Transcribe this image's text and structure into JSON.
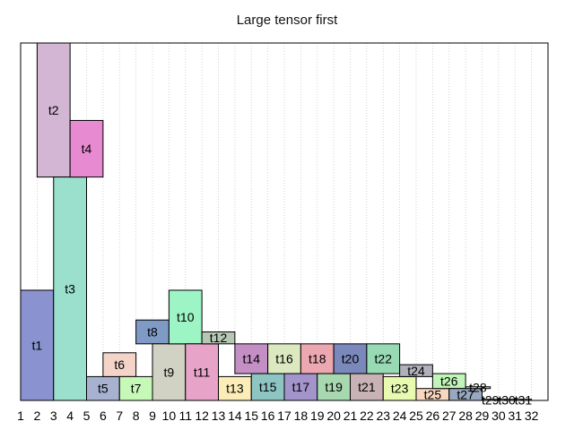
{
  "chart_data": {
    "type": "bar",
    "title": "Large tensor first",
    "xlabel": "",
    "ylabel": "",
    "grid": "vertical dotted",
    "xlim": [
      1,
      33
    ],
    "ylim": [
      0,
      120
    ],
    "x_ticks": [
      "1",
      "2",
      "3",
      "4",
      "5",
      "6",
      "7",
      "8",
      "9",
      "10",
      "11",
      "12",
      "13",
      "14",
      "15",
      "16",
      "17",
      "18",
      "19",
      "20",
      "21",
      "22",
      "23",
      "24",
      "25",
      "26",
      "27",
      "28",
      "29",
      "30",
      "31",
      "32"
    ],
    "blocks": [
      {
        "label": "t1",
        "x0": 1,
        "x1": 3,
        "y0": 0,
        "y1": 37,
        "color": "#8a93cf"
      },
      {
        "label": "t2",
        "x0": 2,
        "x1": 4,
        "y0": 75,
        "y1": 120,
        "color": "#d3b6d3"
      },
      {
        "label": "t3",
        "x0": 3,
        "x1": 5,
        "y0": 0,
        "y1": 75,
        "color": "#9be0cc"
      },
      {
        "label": "t4",
        "x0": 4,
        "x1": 6,
        "y0": 75,
        "y1": 94,
        "color": "#e88ad2"
      },
      {
        "label": "t5",
        "x0": 5,
        "x1": 7,
        "y0": 0,
        "y1": 8,
        "color": "#a6b2d0"
      },
      {
        "label": "t6",
        "x0": 6,
        "x1": 8,
        "y0": 8,
        "y1": 16,
        "color": "#f4d4c8"
      },
      {
        "label": "t7",
        "x0": 7,
        "x1": 9,
        "y0": 0,
        "y1": 8,
        "color": "#c6f8b8"
      },
      {
        "label": "t8",
        "x0": 8,
        "x1": 10,
        "y0": 19,
        "y1": 27,
        "color": "#7f9ac4"
      },
      {
        "label": "t9",
        "x0": 9,
        "x1": 11,
        "y0": 0,
        "y1": 19,
        "color": "#d2d2c4"
      },
      {
        "label": "t10",
        "x0": 10,
        "x1": 12,
        "y0": 19,
        "y1": 37,
        "color": "#9df4c4"
      },
      {
        "label": "t11",
        "x0": 11,
        "x1": 13,
        "y0": 0,
        "y1": 19,
        "color": "#e7a4c8"
      },
      {
        "label": "t12",
        "x0": 12,
        "x1": 14,
        "y0": 19,
        "y1": 23,
        "color": "#b6c8b4"
      },
      {
        "label": "t13",
        "x0": 13,
        "x1": 15,
        "y0": 0,
        "y1": 8,
        "color": "#fcecb8"
      },
      {
        "label": "t14",
        "x0": 14,
        "x1": 16,
        "y0": 9,
        "y1": 19,
        "color": "#c38fc4"
      },
      {
        "label": "t15",
        "x0": 15,
        "x1": 17,
        "y0": 0,
        "y1": 9,
        "color": "#8ec4c2"
      },
      {
        "label": "t16",
        "x0": 16,
        "x1": 18,
        "y0": 9,
        "y1": 19,
        "color": "#dce8c0"
      },
      {
        "label": "t17",
        "x0": 17,
        "x1": 19,
        "y0": 0,
        "y1": 9,
        "color": "#a494cc"
      },
      {
        "label": "t18",
        "x0": 18,
        "x1": 20,
        "y0": 9,
        "y1": 19,
        "color": "#eca8b0"
      },
      {
        "label": "t19",
        "x0": 19,
        "x1": 21,
        "y0": 0,
        "y1": 9,
        "color": "#a8d8b0"
      },
      {
        "label": "t20",
        "x0": 20,
        "x1": 22,
        "y0": 9,
        "y1": 19,
        "color": "#7b88bc"
      },
      {
        "label": "t21",
        "x0": 21,
        "x1": 23,
        "y0": 0,
        "y1": 9,
        "color": "#c8b2b6"
      },
      {
        "label": "t22",
        "x0": 22,
        "x1": 24,
        "y0": 9,
        "y1": 19,
        "color": "#98dab4"
      },
      {
        "label": "t23",
        "x0": 23,
        "x1": 25,
        "y0": 0,
        "y1": 8,
        "color": "#e8fab0"
      },
      {
        "label": "t24",
        "x0": 24,
        "x1": 26,
        "y0": 8,
        "y1": 12,
        "color": "#b0b0bc"
      },
      {
        "label": "t25",
        "x0": 25,
        "x1": 27,
        "y0": 0,
        "y1": 4,
        "color": "#f8d8c0"
      },
      {
        "label": "t26",
        "x0": 26,
        "x1": 28,
        "y0": 4,
        "y1": 9,
        "color": "#c0f4b8"
      },
      {
        "label": "t27",
        "x0": 27,
        "x1": 29,
        "y0": 0,
        "y1": 4,
        "color": "#98a8c0"
      },
      {
        "label": "t28",
        "x0": 28,
        "x1": 29.5,
        "y0": 4,
        "y1": 4.6,
        "color": "#d0d0c8"
      },
      {
        "label": "t29",
        "x0": 29,
        "x1": 30,
        "y0": 0,
        "y1": 0.4,
        "color": "#bbbbbb"
      },
      {
        "label": "t30",
        "x0": 30,
        "x1": 31,
        "y0": 0,
        "y1": 0.4,
        "color": "#bbbbbb"
      },
      {
        "label": "t31",
        "x0": 31,
        "x1": 32,
        "y0": 0,
        "y1": 0.4,
        "color": "#bbbbbb"
      }
    ]
  }
}
